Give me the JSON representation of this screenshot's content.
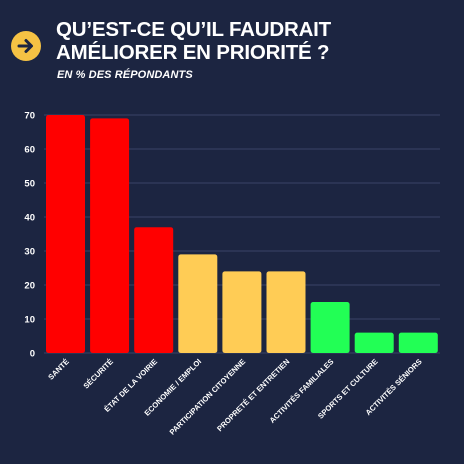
{
  "header": {
    "title_line1": "QU’EST-CE QU’IL FAUDRAIT",
    "title_line2": "AMÉLIORER EN PRIORITÉ ?",
    "subtitle": "EN % DES RÉPONDANTS",
    "badge_icon": "arrow-right-icon"
  },
  "colors": {
    "background": "#1c2541",
    "badge": "#f5c244",
    "high": "#ff0000",
    "medium": "#ffcc55",
    "low": "#22ff55",
    "grid": "#3a4466",
    "text": "#ffffff"
  },
  "chart_data": {
    "type": "bar",
    "title": "QU’EST-CE QU’IL FAUDRAIT AMÉLIORER EN PRIORITÉ ?",
    "subtitle": "EN % DES RÉPONDANTS",
    "categories": [
      "SANTÉ",
      "SÉCURITÉ",
      "ÉTAT DE LA VOIRIE",
      "ECONOMIE / EMPLOI",
      "PARTICIPATION CITOYENNE",
      "PROPRETÉ ET ENTRETIEN",
      "ACTIVITÉS FAMILIALES",
      "SPORTS ET CULTURE",
      "ACTIVITÉS SÉNIORS"
    ],
    "values": [
      70,
      69,
      37,
      29,
      24,
      24,
      15,
      6,
      6
    ],
    "bar_colors": [
      "#ff0000",
      "#ff0000",
      "#ff0000",
      "#ffcc55",
      "#ffcc55",
      "#ffcc55",
      "#22ff55",
      "#22ff55",
      "#22ff55"
    ],
    "ylim": [
      0,
      70
    ],
    "yticks": [
      0,
      10,
      20,
      30,
      40,
      50,
      60,
      70
    ],
    "grid": true,
    "legend": "none"
  }
}
